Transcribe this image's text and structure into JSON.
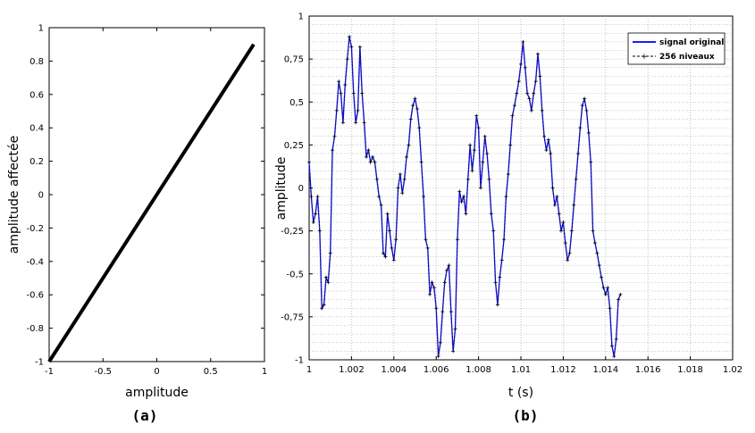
{
  "colors": {
    "axis": "#000000",
    "identity_line": "#000000",
    "grid": "#9a9a9a",
    "signal_original": "#1a1aff",
    "quantized": "#000000"
  },
  "chart_data": [
    {
      "type": "line",
      "panel_label": "(a)",
      "xlabel": "amplitude",
      "ylabel": "amplitude affectée",
      "xlim": [
        -1,
        1
      ],
      "ylim": [
        -1,
        1
      ],
      "xticks": [
        -1,
        -0.5,
        0,
        0.5,
        1
      ],
      "xtick_labels": [
        "-1",
        "-0.5",
        "0",
        "0.5",
        "1"
      ],
      "yticks": [
        -1,
        -0.8,
        -0.6,
        -0.4,
        -0.2,
        0,
        0.2,
        0.4,
        0.6,
        0.8,
        1
      ],
      "ytick_labels": [
        "-1",
        "-0.8",
        "-0.6",
        "-0.4",
        "-0.2",
        "0",
        "0.2",
        "0.4",
        "0.6",
        "0.8",
        "1"
      ],
      "grid": false,
      "series": [
        {
          "x": [
            -1,
            0.9
          ],
          "y": [
            -1,
            0.9
          ]
        }
      ]
    },
    {
      "type": "line",
      "panel_label": "(b)",
      "xlabel": "t (s)",
      "ylabel": "amplitude",
      "xlim": [
        1,
        1.02
      ],
      "ylim": [
        -1,
        1
      ],
      "xticks": [
        1,
        1.002,
        1.004,
        1.006,
        1.008,
        1.01,
        1.012,
        1.014,
        1.016,
        1.018,
        1.02
      ],
      "xtick_labels": [
        "1",
        "1.002",
        "1.004",
        "1.006",
        "1.008",
        "1.01",
        "1.012",
        "1.014",
        "1.016",
        "1.018",
        "1.02"
      ],
      "yticks": [
        -1,
        -0.75,
        -0.5,
        -0.25,
        0,
        0.25,
        0.5,
        0.75,
        1
      ],
      "ytick_labels": [
        "-1",
        "-0,75",
        "-0,5",
        "-0,25",
        "0",
        "0,25",
        "0,5",
        "0,75",
        "1"
      ],
      "grid": true,
      "legend_position": "top-right",
      "sample_step": 0.0001,
      "series": [
        {
          "name": "signal original",
          "values": [
            0.15,
            -0.05,
            -0.2,
            -0.15,
            -0.05,
            -0.25,
            -0.7,
            -0.68,
            -0.52,
            -0.55,
            -0.38,
            0.22,
            0.3,
            0.45,
            0.62,
            0.55,
            0.38,
            0.6,
            0.75,
            0.88,
            0.82,
            0.55,
            0.38,
            0.45,
            0.82,
            0.55,
            0.38,
            0.18,
            0.22,
            0.15,
            0.18,
            0.15,
            0.05,
            -0.05,
            -0.1,
            -0.38,
            -0.4,
            -0.15,
            -0.25,
            -0.35,
            -0.42,
            -0.3,
            0.0,
            0.08,
            -0.03,
            0.05,
            0.18,
            0.25,
            0.4,
            0.48,
            0.52,
            0.46,
            0.35,
            0.15,
            -0.05,
            -0.3,
            -0.35,
            -0.62,
            -0.55,
            -0.58,
            -0.7,
            -0.98,
            -0.9,
            -0.72,
            -0.55,
            -0.48,
            -0.45,
            -0.72,
            -0.95,
            -0.82,
            -0.3,
            -0.02,
            -0.08,
            -0.05,
            -0.15,
            0.05,
            0.25,
            0.1,
            0.22,
            0.42,
            0.35,
            0.0,
            0.15,
            0.3,
            0.2,
            0.05,
            -0.15,
            -0.25,
            -0.55,
            -0.68,
            -0.52,
            -0.42,
            -0.3,
            -0.05,
            0.08,
            0.25,
            0.42,
            0.48,
            0.55,
            0.62,
            0.72,
            0.85,
            0.7,
            0.55,
            0.52,
            0.45,
            0.55,
            0.62,
            0.78,
            0.65,
            0.45,
            0.3,
            0.22,
            0.28,
            0.2,
            0.0,
            -0.1,
            -0.05,
            -0.15,
            -0.25,
            -0.2,
            -0.32,
            -0.42,
            -0.38,
            -0.25,
            -0.1,
            0.05,
            0.2,
            0.35,
            0.48,
            0.52,
            0.45,
            0.32,
            0.15,
            -0.25,
            -0.32,
            -0.38,
            -0.45,
            -0.52,
            -0.58,
            -0.62,
            -0.58,
            -0.7,
            -0.92,
            -0.98,
            -0.88,
            -0.65,
            -0.62
          ]
        },
        {
          "name": "256 niveaux",
          "values": [
            0.15,
            -0.05,
            -0.2,
            -0.15,
            -0.05,
            -0.25,
            -0.7,
            -0.68,
            -0.52,
            -0.55,
            -0.38,
            0.22,
            0.3,
            0.45,
            0.62,
            0.55,
            0.38,
            0.6,
            0.75,
            0.88,
            0.82,
            0.55,
            0.38,
            0.45,
            0.82,
            0.55,
            0.38,
            0.18,
            0.22,
            0.15,
            0.18,
            0.15,
            0.05,
            -0.05,
            -0.1,
            -0.38,
            -0.4,
            -0.15,
            -0.25,
            -0.35,
            -0.42,
            -0.3,
            0.0,
            0.08,
            -0.03,
            0.05,
            0.18,
            0.25,
            0.4,
            0.48,
            0.52,
            0.46,
            0.35,
            0.15,
            -0.05,
            -0.3,
            -0.35,
            -0.62,
            -0.55,
            -0.58,
            -0.7,
            -0.98,
            -0.9,
            -0.72,
            -0.55,
            -0.48,
            -0.45,
            -0.72,
            -0.95,
            -0.82,
            -0.3,
            -0.02,
            -0.08,
            -0.05,
            -0.15,
            0.05,
            0.25,
            0.1,
            0.22,
            0.42,
            0.35,
            0.0,
            0.15,
            0.3,
            0.2,
            0.05,
            -0.15,
            -0.25,
            -0.55,
            -0.68,
            -0.52,
            -0.42,
            -0.3,
            -0.05,
            0.08,
            0.25,
            0.42,
            0.48,
            0.55,
            0.62,
            0.72,
            0.85,
            0.7,
            0.55,
            0.52,
            0.45,
            0.55,
            0.62,
            0.78,
            0.65,
            0.45,
            0.3,
            0.22,
            0.28,
            0.2,
            0.0,
            -0.1,
            -0.05,
            -0.15,
            -0.25,
            -0.2,
            -0.32,
            -0.42,
            -0.38,
            -0.25,
            -0.1,
            0.05,
            0.2,
            0.35,
            0.48,
            0.52,
            0.45,
            0.32,
            0.15,
            -0.25,
            -0.32,
            -0.38,
            -0.45,
            -0.52,
            -0.58,
            -0.62,
            -0.58,
            -0.7,
            -0.92,
            -0.98,
            -0.88,
            -0.65,
            -0.62
          ]
        }
      ]
    }
  ]
}
